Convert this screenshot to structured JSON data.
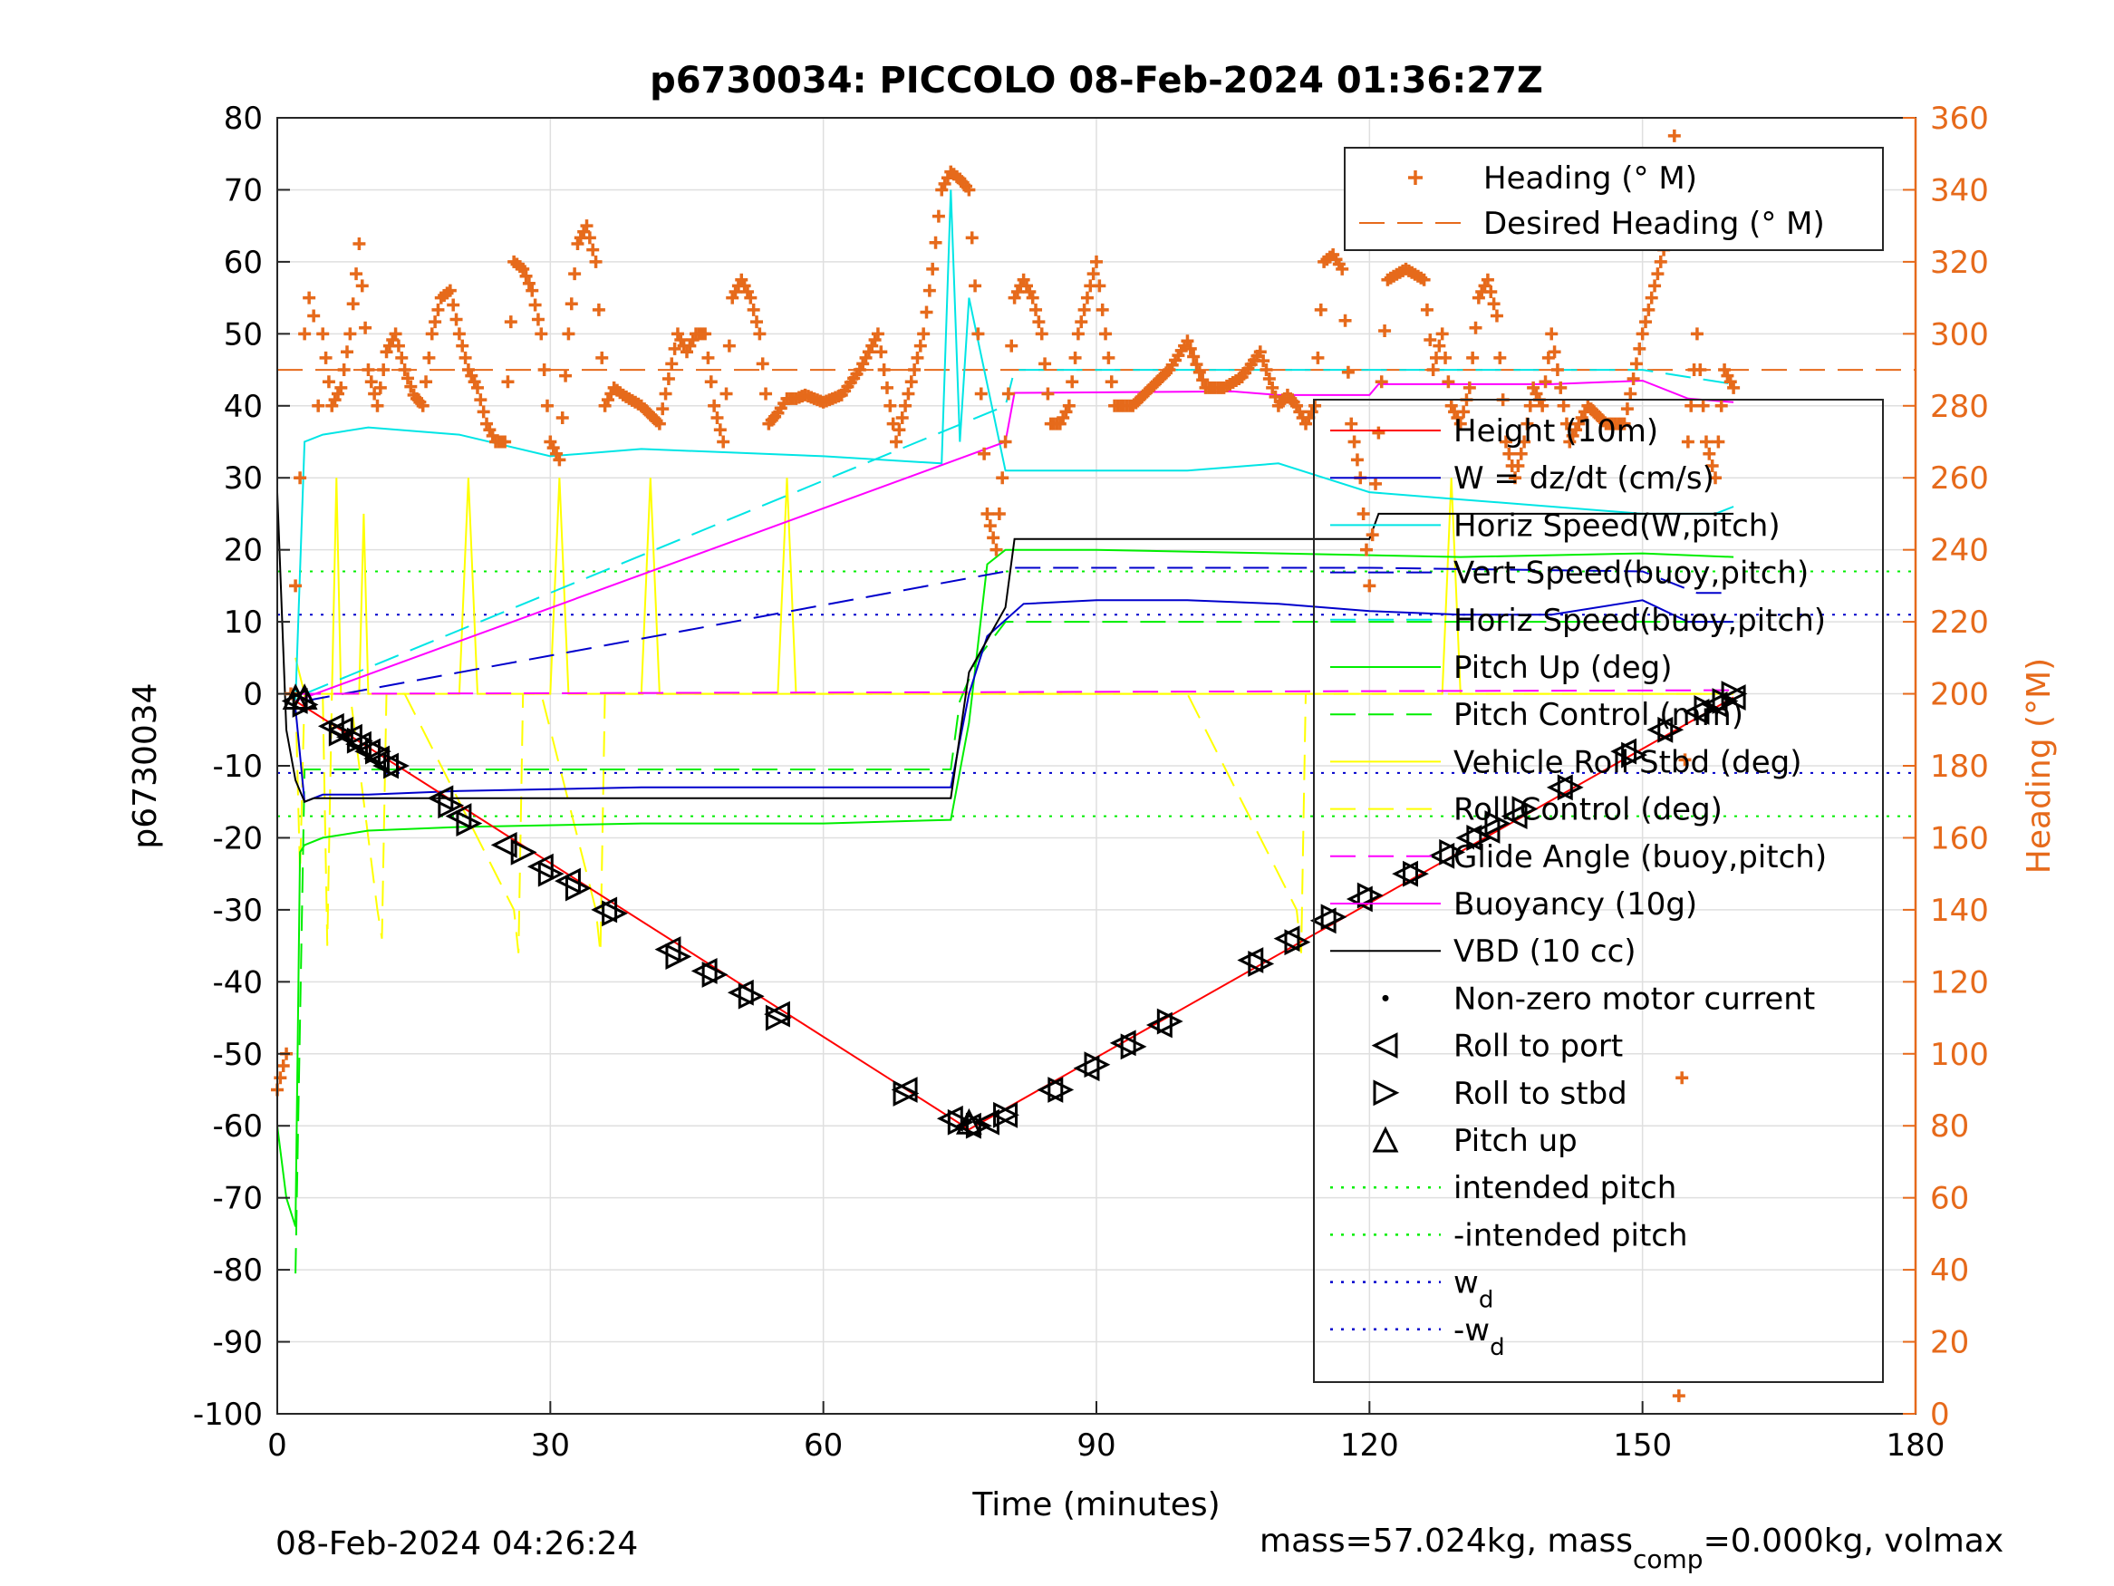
{
  "chart_data": {
    "type": "line",
    "title": "p6730034: PICCOLO 08-Feb-2024 01:36:27Z",
    "xlabel": "Time (minutes)",
    "ylabel": "p6730034",
    "ylabel_right": "Heading (°M)",
    "xlim": [
      0,
      180
    ],
    "ylim": [
      -100,
      80
    ],
    "ylim_right": [
      0,
      360
    ],
    "xticks": [
      "0",
      "30",
      "60",
      "90",
      "120",
      "150",
      "180"
    ],
    "yticks": [
      "80",
      "70",
      "60",
      "50",
      "40",
      "30",
      "20",
      "10",
      "0",
      "-10",
      "-20",
      "-30",
      "-40",
      "-50",
      "-60",
      "-70",
      "-80",
      "-90",
      "-100"
    ],
    "yticks_right": [
      "360",
      "340",
      "320",
      "300",
      "280",
      "260",
      "240",
      "220",
      "200",
      "180",
      "160",
      "140",
      "120",
      "100",
      "80",
      "60",
      "40",
      "20",
      "0"
    ],
    "grid": true,
    "right_axis_color": "#e66a1b",
    "legend_top": {
      "placement": "top-right",
      "entries": [
        {
          "label": "Heading (° M)",
          "color": "#e66a1b"
        },
        {
          "label": "Desired Heading (° M)",
          "color": "#e66a1b"
        }
      ]
    },
    "legend_main": {
      "placement": "right",
      "entries": [
        {
          "label": "Height (10m)",
          "color": "#ff0000"
        },
        {
          "label": "W = dz/dt (cm/s)",
          "color": "#0000cc"
        },
        {
          "label": "Horiz Speed(W,pitch)",
          "color": "#00e5e5"
        },
        {
          "label": "Vert Speed(buoy,pitch)",
          "color": "#0000cc"
        },
        {
          "label": "Horiz Speed(buoy,pitch)",
          "color": "#00e5e5"
        },
        {
          "label": "Pitch Up (deg)",
          "color": "#00ee00"
        },
        {
          "label": "Pitch Control (mm)",
          "color": "#00ee00"
        },
        {
          "label": "Vehicle Roll Stbd (deg)",
          "color": "#ffff00"
        },
        {
          "label": "Roll Control (deg)",
          "color": "#ffff00"
        },
        {
          "label": "Glide Angle (buoy,pitch)",
          "color": "#ff00ff"
        },
        {
          "label": "Buoyancy (10g)",
          "color": "#ff00ff"
        },
        {
          "label": "VBD (10 cc)",
          "color": "#000000"
        },
        {
          "label": "Non-zero motor current",
          "color": "#000000"
        },
        {
          "label": "Roll to port",
          "color": "#000000"
        },
        {
          "label": "Roll to stbd",
          "color": "#000000"
        },
        {
          "label": "Pitch up",
          "color": "#000000"
        },
        {
          "label": "intended pitch",
          "color": "#00ee00"
        },
        {
          "label": "-intended pitch",
          "color": "#00ee00"
        },
        {
          "label": "w",
          "sub": "d",
          "color": "#0000cc"
        },
        {
          "label": "-w",
          "sub": "d",
          "color": "#0000cc"
        }
      ]
    },
    "footer_left": "08-Feb-2024 04:26:24",
    "footer_right": "mass=57.024kg, mass",
    "footer_right_sub": "comp",
    "footer_right_tail": "=0.000kg, volmax",
    "series": [
      {
        "key": "height",
        "color": "#ff0000",
        "dash": "none",
        "x": [
          2,
          76,
          160
        ],
        "y": [
          -1,
          -60.5,
          -0.5
        ]
      },
      {
        "key": "vbd",
        "color": "#000000",
        "dash": "none",
        "x": [
          0,
          1,
          2,
          3,
          4,
          74,
          76,
          80,
          81,
          120,
          121,
          160
        ],
        "y": [
          28,
          -5,
          -12,
          -15,
          -14.5,
          -14.5,
          3,
          12,
          21.5,
          21.5,
          25,
          25
        ]
      },
      {
        "key": "w",
        "color": "#0000cc",
        "dash": "none",
        "x": [
          2,
          3,
          5,
          10,
          20,
          40,
          60,
          74,
          76,
          78,
          82,
          90,
          100,
          110,
          120,
          130,
          140,
          150,
          155,
          160
        ],
        "y": [
          -2,
          -15,
          -14,
          -14,
          -13.5,
          -13,
          -13,
          -13,
          0,
          8,
          12.5,
          13,
          13,
          12.5,
          11.5,
          11,
          11,
          13,
          10,
          10
        ]
      },
      {
        "key": "vspeed_buoy",
        "color": "#0000cc",
        "dash": "28,14",
        "x": [
          3,
          80,
          81,
          120,
          150,
          156,
          160
        ],
        "y": [
          -1,
          17,
          17.5,
          17.5,
          17,
          14,
          14
        ]
      },
      {
        "key": "hspeed_w",
        "color": "#00e5e5",
        "dash": "none",
        "x": [
          2,
          3,
          5,
          10,
          20,
          30,
          40,
          60,
          73,
          74,
          75,
          76,
          80,
          90,
          100,
          110,
          115,
          120,
          130,
          150,
          158,
          160
        ],
        "y": [
          -1,
          35,
          36,
          37,
          36,
          33,
          34,
          33,
          32,
          70,
          35,
          55,
          31,
          31,
          31,
          32,
          30,
          28,
          27,
          25,
          25,
          26
        ]
      },
      {
        "key": "hspeed_buoy",
        "color": "#00e5e5",
        "dash": "28,14",
        "x": [
          3,
          80,
          81,
          120,
          150,
          160
        ],
        "y": [
          0,
          40,
          45,
          45,
          45,
          43
        ]
      },
      {
        "key": "pitch",
        "color": "#00ee00",
        "dash": "none",
        "x": [
          0,
          1,
          2,
          2.5,
          3,
          5,
          10,
          20,
          40,
          60,
          74,
          76,
          78,
          80,
          90,
          110,
          130,
          150,
          160
        ],
        "y": [
          -60,
          -70,
          -74,
          -22,
          -21,
          -20,
          -19,
          -18.5,
          -18,
          -18,
          -17.5,
          -4,
          18,
          20,
          20,
          19.5,
          19,
          19.5,
          19
        ]
      },
      {
        "key": "pitch_ctrl",
        "color": "#00ee00",
        "dash": "28,14",
        "x": [
          2,
          3,
          74,
          75,
          77,
          80,
          160
        ],
        "y": [
          -80.5,
          -10.5,
          -10.5,
          -1,
          5,
          10,
          10
        ]
      },
      {
        "key": "roll_ctrl",
        "color": "#ffff00",
        "dash": "28,14",
        "x": [
          2,
          2.5,
          3,
          4,
          5,
          5.5,
          6,
          7,
          8,
          11,
          11.5,
          12,
          14,
          26,
          26.5,
          27,
          29,
          35,
          35.5,
          36,
          38,
          70,
          100,
          112,
          112.5,
          113,
          115,
          160
        ],
        "y": [
          0,
          -25,
          0,
          0,
          0,
          -35,
          0,
          0,
          0,
          -30,
          -34,
          0,
          0,
          -30,
          -36,
          0,
          0,
          -30,
          -36,
          0,
          0,
          0,
          0,
          -30,
          -36,
          0,
          0,
          0
        ]
      },
      {
        "key": "roll",
        "color": "#ffff00",
        "dash": "none",
        "x": [
          2,
          3,
          6,
          6.5,
          7,
          9,
          9.5,
          10,
          20,
          21,
          22,
          24,
          30,
          31,
          32,
          34,
          40,
          41,
          42,
          44,
          55,
          56,
          57,
          59,
          70,
          80,
          100,
          120,
          128,
          129,
          130,
          132,
          140,
          150,
          160
        ],
        "y": [
          5,
          0,
          0,
          30,
          0,
          0,
          25,
          0,
          0,
          30,
          0,
          0,
          0,
          30,
          0,
          0,
          0,
          30,
          0,
          0,
          0,
          30,
          0,
          0,
          0,
          0,
          0,
          0,
          0,
          30,
          0,
          0,
          0,
          0,
          0
        ]
      },
      {
        "key": "glide",
        "color": "#ff00ff",
        "dash": "28,14",
        "x": [
          2,
          160
        ],
        "y": [
          0,
          0.5
        ]
      },
      {
        "key": "buoyancy",
        "color": "#ff00ff",
        "dash": "none",
        "x": [
          2,
          80,
          81,
          105,
          110,
          120,
          121,
          140,
          150,
          155,
          160
        ],
        "y": [
          -1,
          35,
          41.8,
          42,
          41.5,
          41.5,
          43,
          43,
          43.5,
          41,
          40.5
        ]
      },
      {
        "key": "desired_heading",
        "color": "#e66a1b",
        "dash": "28,14",
        "axis": "right",
        "x": [
          0,
          180
        ],
        "y": [
          290,
          290
        ]
      },
      {
        "key": "intended_pitch",
        "color": "#00ee00",
        "dash": "3,9",
        "x": [
          0,
          180
        ],
        "y": [
          17,
          17
        ]
      },
      {
        "key": "neg_intended_pitch",
        "color": "#00ee00",
        "dash": "3,9",
        "x": [
          0,
          180
        ],
        "y": [
          -17,
          -17
        ]
      },
      {
        "key": "wd",
        "color": "#0000cc",
        "dash": "3,9",
        "x": [
          0,
          180
        ],
        "y": [
          11,
          11
        ]
      },
      {
        "key": "neg_wd",
        "color": "#0000cc",
        "dash": "3,9",
        "x": [
          0,
          180
        ],
        "y": [
          -11,
          -11
        ]
      }
    ],
    "heading_series": {
      "axis": "right",
      "color": "#e66a1b",
      "marker": "+",
      "x": [
        0,
        1,
        1.5,
        2,
        2.5,
        3,
        3.5,
        4,
        4.5,
        5,
        6,
        7,
        8,
        9,
        10,
        11,
        12,
        13,
        14,
        15,
        16,
        17,
        18,
        19,
        20,
        21,
        22,
        23,
        24,
        25,
        26,
        27,
        28,
        29,
        30,
        31,
        32,
        33,
        34,
        35,
        36,
        37,
        38,
        40,
        42,
        44,
        45,
        46,
        47,
        48,
        49,
        50,
        51,
        52,
        53,
        54,
        55,
        56,
        57,
        58,
        60,
        62,
        64,
        66,
        68,
        70,
        71,
        72,
        73,
        74,
        75,
        76,
        77,
        78,
        79,
        80,
        81,
        82,
        83,
        84,
        85,
        86,
        87,
        88,
        89,
        90,
        92,
        94,
        96,
        98,
        100,
        102,
        104,
        106,
        108,
        110,
        111,
        112,
        113,
        114,
        115,
        116,
        117,
        118,
        119,
        120,
        122,
        124,
        126,
        127,
        128,
        129,
        130,
        131,
        132,
        133,
        134,
        135,
        136,
        137,
        138,
        139,
        140,
        142,
        144,
        146,
        148,
        150,
        151,
        152,
        153,
        153.5,
        154,
        155,
        156,
        157,
        158,
        159,
        160
      ],
      "y": [
        90,
        100,
        200,
        230,
        260,
        300,
        310,
        305,
        280,
        300,
        280,
        285,
        300,
        325,
        290,
        280,
        295,
        300,
        290,
        283,
        280,
        300,
        310,
        312,
        300,
        290,
        285,
        275,
        270,
        270,
        320,
        318,
        312,
        300,
        270,
        265,
        300,
        325,
        330,
        320,
        280,
        285,
        283,
        280,
        275,
        300,
        295,
        300,
        300,
        280,
        270,
        310,
        315,
        310,
        300,
        275,
        278,
        282,
        282,
        283,
        281,
        283,
        290,
        300,
        270,
        290,
        300,
        318,
        340,
        345,
        343,
        340,
        300,
        250,
        240,
        270,
        310,
        315,
        310,
        300,
        275,
        275,
        280,
        300,
        310,
        320,
        280,
        280,
        285,
        290,
        298,
        285,
        285,
        288,
        295,
        280,
        283,
        280,
        275,
        280,
        320,
        322,
        318,
        275,
        260,
        230,
        315,
        318,
        315,
        290,
        300,
        280,
        275,
        285,
        310,
        315,
        305,
        270,
        260,
        270,
        285,
        280,
        300,
        270,
        280,
        275,
        275,
        300,
        310,
        320,
        330,
        355,
        5,
        270,
        300,
        270,
        260,
        290,
        285
      ]
    },
    "motor_events": {
      "roll_port": [
        [
          2,
          -1
        ],
        [
          6,
          -4.5
        ],
        [
          7,
          -5
        ],
        [
          8,
          -6
        ],
        [
          9,
          -7
        ],
        [
          10,
          -8
        ],
        [
          11,
          -9
        ],
        [
          12,
          -10
        ],
        [
          18,
          -14.5
        ],
        [
          20,
          -17
        ],
        [
          25,
          -21
        ],
        [
          29,
          -24
        ],
        [
          32,
          -26
        ],
        [
          36,
          -30
        ],
        [
          43,
          -35.5
        ],
        [
          47,
          -38.5
        ],
        [
          51,
          -41.5
        ],
        [
          55,
          -44.5
        ],
        [
          69,
          -55
        ],
        [
          74,
          -59
        ],
        [
          76,
          -60
        ],
        [
          78,
          -59.5
        ],
        [
          80,
          -58.5
        ],
        [
          85,
          -55
        ],
        [
          89,
          -52
        ],
        [
          93,
          -48.5
        ],
        [
          97,
          -46
        ],
        [
          107,
          -37
        ],
        [
          111,
          -34
        ],
        [
          115,
          -31.5
        ],
        [
          119,
          -28.5
        ],
        [
          124,
          -25
        ],
        [
          128,
          -22.5
        ],
        [
          131,
          -20
        ],
        [
          133,
          -19
        ],
        [
          136,
          -17
        ],
        [
          141,
          -13
        ],
        [
          148,
          -8
        ],
        [
          152,
          -5
        ],
        [
          156,
          -2.5
        ],
        [
          158,
          -1.5
        ],
        [
          160,
          -0.5
        ]
      ],
      "roll_stbd": [
        [
          3,
          -1.5
        ],
        [
          7,
          -5.5
        ],
        [
          9,
          -6.5
        ],
        [
          11,
          -8
        ],
        [
          13,
          -10
        ],
        [
          19,
          -15.5
        ],
        [
          21,
          -18
        ],
        [
          27,
          -22
        ],
        [
          30,
          -25
        ],
        [
          33,
          -27
        ],
        [
          37,
          -30.5
        ],
        [
          44,
          -36.5
        ],
        [
          48,
          -39
        ],
        [
          52,
          -42
        ],
        [
          55,
          -45
        ],
        [
          69,
          -55.5
        ],
        [
          75,
          -59.5
        ],
        [
          77,
          -60
        ],
        [
          80,
          -58.5
        ],
        [
          86,
          -55
        ],
        [
          90,
          -51.5
        ],
        [
          94,
          -49
        ],
        [
          98,
          -45.5
        ],
        [
          108,
          -37.5
        ],
        [
          112,
          -34.5
        ],
        [
          116,
          -31
        ],
        [
          120,
          -28
        ],
        [
          125,
          -25
        ],
        [
          129,
          -22
        ],
        [
          132,
          -20
        ],
        [
          134,
          -18
        ],
        [
          137,
          -16
        ],
        [
          142,
          -13
        ],
        [
          149,
          -8.5
        ],
        [
          153,
          -5
        ],
        [
          157,
          -2
        ],
        [
          159,
          -1
        ],
        [
          160,
          0
        ]
      ],
      "pitch_up": [
        [
          2,
          -0.5
        ],
        [
          3,
          -0.5
        ],
        [
          76,
          -59.5
        ]
      ]
    }
  }
}
